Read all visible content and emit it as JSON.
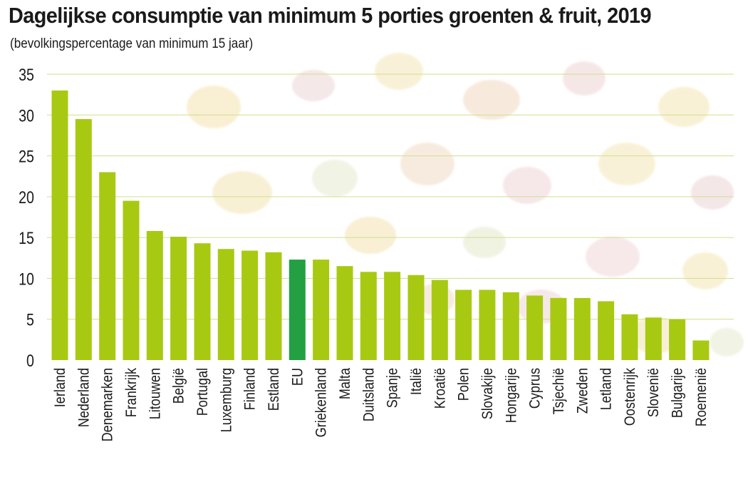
{
  "chart_data": {
    "type": "bar",
    "title": "Dagelijkse consumptie van minimum 5 porties groenten & fruit, 2019",
    "subtitle": "(bevolkingspercentage van minimum 15 jaar)",
    "xlabel": "",
    "ylabel": "",
    "ylim": [
      0,
      35
    ],
    "yticks": [
      0,
      5,
      10,
      15,
      20,
      25,
      30,
      35
    ],
    "grid": true,
    "categories": [
      "Ierland",
      "Nederland",
      "Denemarken",
      "Frankrijk",
      "Litouwen",
      "België",
      "Portugal",
      "Luxemburg",
      "Finland",
      "Estland",
      "EU",
      "Griekenland",
      "Malta",
      "Duitsland",
      "Spanje",
      "Italië",
      "Kroatië",
      "Polen",
      "Slovakije",
      "Hongarije",
      "Cyprus",
      "Tsjechië",
      "Zweden",
      "Letland",
      "Oostenrijk",
      "Slovenië",
      "Bulgarije",
      "Roemenië"
    ],
    "values": [
      33.0,
      29.5,
      23.0,
      19.5,
      15.8,
      15.1,
      14.3,
      13.6,
      13.4,
      13.2,
      12.3,
      12.3,
      11.5,
      10.8,
      10.8,
      10.4,
      9.8,
      8.6,
      8.6,
      8.3,
      7.9,
      7.6,
      7.6,
      7.2,
      5.6,
      5.2,
      5.0,
      2.4
    ],
    "highlight": "EU",
    "colors": {
      "bar": "#a8c912",
      "highlight": "#22a042",
      "grid": "#cfe08a",
      "text": "#1a1a1a"
    }
  }
}
